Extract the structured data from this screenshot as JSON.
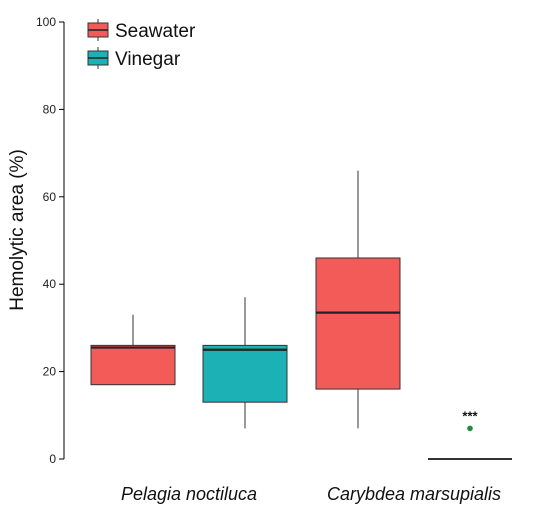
{
  "chart_data": {
    "type": "box",
    "ylabel": "Hemolytic area (%)",
    "ylim": [
      0,
      100
    ],
    "yticks": [
      0,
      20,
      40,
      60,
      80,
      100
    ],
    "grid": false,
    "legend": {
      "position": "top-left",
      "entries": [
        "Seawater",
        "Vinegar"
      ]
    },
    "categories": [
      "Pelagia noctiluca",
      "Carybdea marsupialis"
    ],
    "series": [
      {
        "name": "Seawater",
        "color": "#F35B58",
        "boxes": [
          {
            "category": "Pelagia noctiluca",
            "min": 17,
            "q1": 17,
            "median": 25.5,
            "q3": 26,
            "max": 33
          },
          {
            "category": "Carybdea marsupialis",
            "min": 7,
            "q1": 16,
            "median": 33.5,
            "q3": 46,
            "max": 66
          }
        ]
      },
      {
        "name": "Vinegar",
        "color": "#1CB1B5",
        "boxes": [
          {
            "category": "Pelagia noctiluca",
            "min": 7,
            "q1": 13,
            "median": 25,
            "q3": 26,
            "max": 37
          },
          {
            "category": "Carybdea marsupialis",
            "min": 0,
            "q1": 0,
            "median": 0,
            "q3": 0,
            "max": 0,
            "outliers": [
              7
            ]
          }
        ]
      }
    ],
    "annotations": [
      {
        "text": "***",
        "category": "Carybdea marsupialis",
        "series": "Vinegar",
        "y": 10
      }
    ],
    "outlier_color": "#1E8E3E"
  }
}
